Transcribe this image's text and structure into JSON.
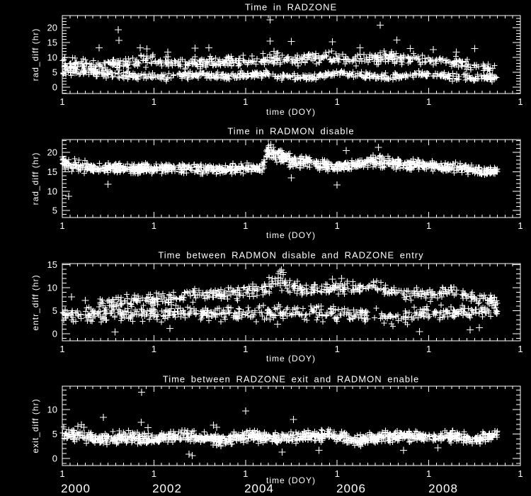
{
  "colors": {
    "background": "#000000",
    "foreground": "#ffffff"
  },
  "year_labels": [
    "2000",
    "2002",
    "2004",
    "2006",
    "2008"
  ],
  "chart_data": [
    {
      "type": "scatter",
      "title": "Time in RADZONE",
      "xlabel": "time (DOY)",
      "ylabel": "rad_diff (hr)",
      "marker": "plus",
      "xlim": [
        2000,
        2010
      ],
      "ylim": [
        -2.1,
        24.0
      ],
      "yticks": [
        0,
        5,
        10,
        15,
        20
      ],
      "xticks": {
        "values": [
          2000,
          2002,
          2004,
          2006,
          2008,
          2010
        ],
        "label": "1"
      },
      "series": [
        {
          "name": "radzone-duration-upper-band",
          "n": 620,
          "trend": [
            [
              2000,
              7.9,
              1.0
            ],
            [
              2000.6,
              7.3,
              0.9
            ],
            [
              2001.3,
              8.3,
              0.9
            ],
            [
              2002,
              8.9,
              0.9
            ],
            [
              2002.7,
              8.1,
              0.9
            ],
            [
              2003.5,
              8.4,
              0.9
            ],
            [
              2004.3,
              8.9,
              1.0
            ],
            [
              2005,
              9.4,
              1.0
            ],
            [
              2005.8,
              10.0,
              1.0
            ],
            [
              2006.3,
              9.4,
              1.0
            ],
            [
              2007,
              10.1,
              1.0
            ],
            [
              2007.8,
              9.4,
              0.9
            ],
            [
              2008.3,
              8.9,
              0.9
            ],
            [
              2009,
              7.3,
              0.9
            ],
            [
              2009.5,
              5.9,
              0.8
            ]
          ]
        },
        {
          "name": "radzone-duration-lower-band",
          "n": 620,
          "trend": [
            [
              2000,
              5.7,
              0.8
            ],
            [
              2000.5,
              5.1,
              0.7
            ],
            [
              2001,
              4.5,
              0.7
            ],
            [
              2001.6,
              3.7,
              0.6
            ],
            [
              2002.2,
              3.3,
              0.6
            ],
            [
              2003,
              4.3,
              0.6
            ],
            [
              2003.6,
              3.5,
              0.6
            ],
            [
              2004.2,
              4.7,
              0.6
            ],
            [
              2004.8,
              3.7,
              0.6
            ],
            [
              2005.4,
              3.3,
              0.6
            ],
            [
              2006,
              4.7,
              0.6
            ],
            [
              2006.6,
              3.7,
              0.6
            ],
            [
              2007.2,
              3.3,
              0.6
            ],
            [
              2007.9,
              4.5,
              0.6
            ],
            [
              2008.5,
              3.5,
              0.6
            ],
            [
              2009,
              2.9,
              0.6
            ],
            [
              2009.5,
              3.3,
              0.7
            ]
          ]
        }
      ],
      "outliers": [
        [
          2001.22,
          19.3
        ],
        [
          2001.24,
          15.7
        ],
        [
          2000.8,
          13.2
        ],
        [
          2001.7,
          13.2
        ],
        [
          2001.85,
          12.8
        ],
        [
          2002.3,
          11.8
        ],
        [
          2002.9,
          13.1
        ],
        [
          2003.2,
          13.2
        ],
        [
          2004.54,
          22.6
        ],
        [
          2004.54,
          15.5
        ],
        [
          2004.62,
          12.0
        ],
        [
          2005.0,
          15.3
        ],
        [
          2005.9,
          15.2
        ],
        [
          2006.5,
          13.2
        ],
        [
          2006.94,
          20.8
        ],
        [
          2007.3,
          15.8
        ],
        [
          2007.6,
          13.0
        ],
        [
          2008.1,
          12.6
        ],
        [
          2008.6,
          11.8
        ],
        [
          2009.0,
          13.0
        ]
      ]
    },
    {
      "type": "scatter",
      "title": "Time in RADMON disable",
      "xlabel": "time (DOY)",
      "ylabel": "rad_diff (hr)",
      "marker": "plus",
      "xlim": [
        2000,
        2010
      ],
      "ylim": [
        3.2,
        23.3
      ],
      "yticks": [
        5,
        10,
        15,
        20
      ],
      "xticks": {
        "values": [
          2000,
          2002,
          2004,
          2006,
          2008,
          2010
        ],
        "label": "1"
      },
      "series": [
        {
          "name": "radmon-disable-band",
          "n": 1200,
          "trend": [
            [
              2000,
              17.7,
              0.8
            ],
            [
              2000.3,
              16.6,
              0.8
            ],
            [
              2000.7,
              15.9,
              0.6
            ],
            [
              2002,
              15.9,
              0.6
            ],
            [
              2003.5,
              15.8,
              0.6
            ],
            [
              2004.35,
              15.9,
              0.6
            ],
            [
              2004.5,
              20.2,
              1.0
            ],
            [
              2004.8,
              18.8,
              0.9
            ],
            [
              2005.1,
              17.3,
              0.7
            ],
            [
              2005.35,
              17.8,
              0.7
            ],
            [
              2005.8,
              16.4,
              0.6
            ],
            [
              2006.3,
              16.7,
              0.6
            ],
            [
              2006.8,
              17.7,
              0.7
            ],
            [
              2007.3,
              17.2,
              0.7
            ],
            [
              2008,
              16.6,
              0.6
            ],
            [
              2008.6,
              16.1,
              0.6
            ],
            [
              2009.1,
              15.3,
              0.6
            ],
            [
              2009.3,
              14.9,
              0.6
            ],
            [
              2009.5,
              15.6,
              0.5
            ]
          ]
        }
      ],
      "outliers": [
        [
          2000.14,
          8.7
        ],
        [
          2001.0,
          11.8
        ],
        [
          2004.55,
          22.0
        ],
        [
          2005.0,
          13.4
        ],
        [
          2006.0,
          11.6
        ],
        [
          2006.2,
          20.5
        ],
        [
          2006.9,
          21.3
        ]
      ]
    },
    {
      "type": "scatter",
      "title": "Time between RADMON disable and RADZONE entry",
      "xlabel": "time (DOY)",
      "ylabel": "entr_diff (hr)",
      "marker": "plus",
      "xlim": [
        2000,
        2010
      ],
      "ylim": [
        -1.5,
        15.2
      ],
      "yticks": [
        0,
        5,
        10,
        15
      ],
      "xticks": {
        "values": [
          2000,
          2002,
          2004,
          2006,
          2008,
          2010
        ],
        "label": "1"
      },
      "series": [
        {
          "name": "entry-diff-lower-band",
          "n": 580,
          "trend": [
            [
              2000,
              4.0,
              0.9
            ],
            [
              2001,
              4.2,
              0.8
            ],
            [
              2002,
              4.4,
              0.8
            ],
            [
              2003,
              4.3,
              0.8
            ],
            [
              2004,
              4.2,
              0.8
            ],
            [
              2005,
              4.6,
              0.8
            ],
            [
              2006,
              4.4,
              0.8
            ],
            [
              2006.8,
              3.8,
              0.8
            ],
            [
              2007.3,
              3.4,
              0.8
            ],
            [
              2008,
              4.6,
              0.7
            ],
            [
              2009,
              4.8,
              0.6
            ],
            [
              2009.5,
              4.8,
              0.6
            ]
          ]
        },
        {
          "name": "entry-diff-upper-band",
          "n": 520,
          "trend": [
            [
              2000.8,
              6.3,
              0.7
            ],
            [
              2001.5,
              7.0,
              0.7
            ],
            [
              2002.3,
              7.8,
              0.7
            ],
            [
              2003,
              8.6,
              0.7
            ],
            [
              2003.8,
              8.8,
              0.7
            ],
            [
              2004.3,
              9.8,
              0.8
            ],
            [
              2004.8,
              11.4,
              0.9
            ],
            [
              2005.2,
              9.6,
              0.7
            ],
            [
              2005.8,
              9.8,
              0.7
            ],
            [
              2006.3,
              10.1,
              0.7
            ],
            [
              2006.8,
              10.2,
              0.7
            ],
            [
              2007.3,
              8.9,
              0.7
            ],
            [
              2008,
              8.6,
              0.7
            ],
            [
              2008.5,
              8.7,
              0.7
            ],
            [
              2009,
              8.0,
              0.6
            ],
            [
              2009.3,
              7.6,
              0.6
            ],
            [
              2009.5,
              6.6,
              0.6
            ]
          ]
        }
      ],
      "outliers": [
        [
          2000.2,
          8.0
        ],
        [
          2000.5,
          7.2
        ],
        [
          2001.15,
          0.4
        ],
        [
          2001.3,
          6.5
        ],
        [
          2002.35,
          1.2
        ],
        [
          2004.7,
          2.1
        ],
        [
          2004.75,
          13.5
        ],
        [
          2004.78,
          13.8
        ],
        [
          2004.82,
          13.3
        ],
        [
          2005.9,
          11.8
        ],
        [
          2006.1,
          12.0
        ],
        [
          2007.8,
          0.5
        ],
        [
          2008.9,
          0.9
        ],
        [
          2009.1,
          1.3
        ]
      ]
    },
    {
      "type": "scatter",
      "title": "Time between RADZONE exit and RADMON enable",
      "xlabel": "time (DOY)",
      "ylabel": "exit_diff (hr)",
      "marker": "plus",
      "xlim": [
        2000,
        2010
      ],
      "ylim": [
        -1.45,
        14.8
      ],
      "yticks": [
        0,
        5,
        10
      ],
      "xticks": {
        "values": [
          2000,
          2002,
          2004,
          2006,
          2008,
          2010
        ],
        "label": "1"
      },
      "series": [
        {
          "name": "exit-diff-band",
          "n": 1200,
          "trend": [
            [
              2000,
              5.1,
              0.6
            ],
            [
              2000.4,
              4.7,
              0.6
            ],
            [
              2000.9,
              3.7,
              0.6
            ],
            [
              2001.3,
              4.5,
              0.6
            ],
            [
              2001.9,
              3.9,
              0.6
            ],
            [
              2002.4,
              4.6,
              0.6
            ],
            [
              2003,
              4.3,
              0.55
            ],
            [
              2003.5,
              3.7,
              0.55
            ],
            [
              2004,
              4.6,
              0.55
            ],
            [
              2004.6,
              4.1,
              0.55
            ],
            [
              2005.2,
              4.4,
              0.55
            ],
            [
              2005.9,
              4.7,
              0.55
            ],
            [
              2006.4,
              3.5,
              0.55
            ],
            [
              2006.9,
              4.4,
              0.55
            ],
            [
              2007.5,
              4.7,
              0.55
            ],
            [
              2008,
              4.1,
              0.55
            ],
            [
              2008.5,
              4.5,
              0.55
            ],
            [
              2009,
              3.9,
              0.55
            ],
            [
              2009.5,
              4.8,
              0.5
            ]
          ]
        }
      ],
      "outliers": [
        [
          2000.34,
          6.6
        ],
        [
          2000.42,
          6.9
        ],
        [
          2000.47,
          6.4
        ],
        [
          2000.9,
          8.4
        ],
        [
          2001.72,
          7.4
        ],
        [
          2001.73,
          13.6
        ],
        [
          2001.87,
          6.3
        ],
        [
          2002.77,
          0.9
        ],
        [
          2002.84,
          0.6
        ],
        [
          2003.3,
          6.8
        ],
        [
          2003.37,
          6.4
        ],
        [
          2004.0,
          9.7
        ],
        [
          2004.8,
          1.3
        ],
        [
          2005.05,
          8.0
        ],
        [
          2005.6,
          1.7
        ],
        [
          2007.45,
          1.7
        ],
        [
          2008.2,
          2.2
        ]
      ]
    }
  ]
}
